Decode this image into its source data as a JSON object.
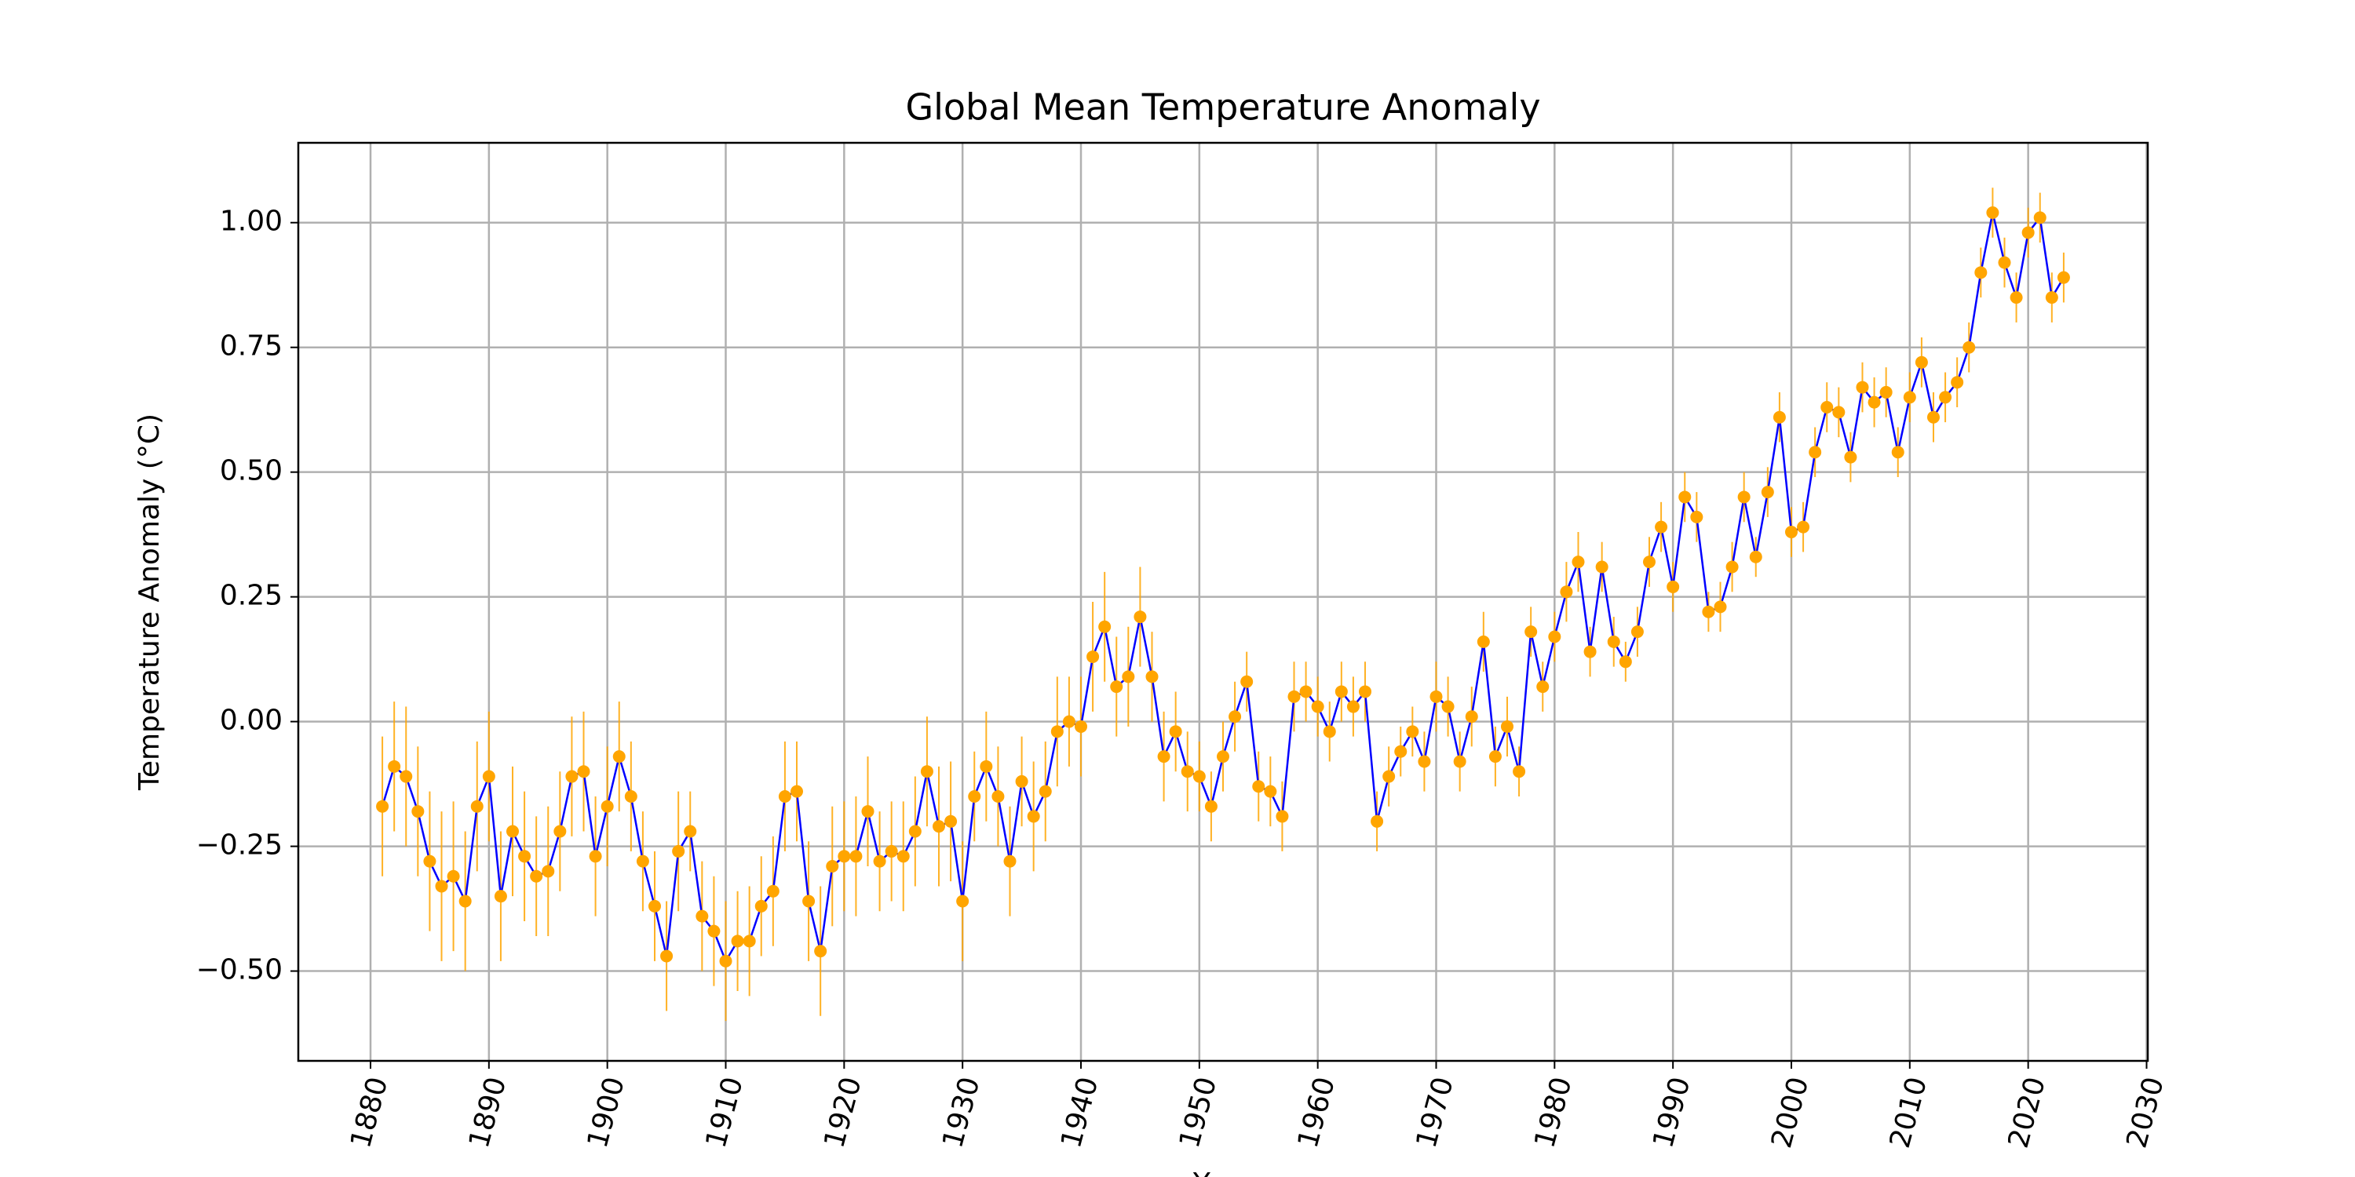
{
  "chart_data": {
    "type": "errorbar",
    "title": "Global Mean Temperature Anomaly",
    "xlabel": "Year",
    "ylabel": "Temperature Anomaly (°C)",
    "x": [
      1881,
      1882,
      1883,
      1884,
      1885,
      1886,
      1887,
      1888,
      1889,
      1890,
      1891,
      1892,
      1893,
      1894,
      1895,
      1896,
      1897,
      1898,
      1899,
      1900,
      1901,
      1902,
      1903,
      1904,
      1905,
      1906,
      1907,
      1908,
      1909,
      1910,
      1911,
      1912,
      1913,
      1914,
      1915,
      1916,
      1917,
      1918,
      1919,
      1920,
      1921,
      1922,
      1923,
      1924,
      1925,
      1926,
      1927,
      1928,
      1929,
      1930,
      1931,
      1932,
      1933,
      1934,
      1935,
      1936,
      1937,
      1938,
      1939,
      1940,
      1941,
      1942,
      1943,
      1944,
      1945,
      1946,
      1947,
      1948,
      1949,
      1950,
      1951,
      1952,
      1953,
      1954,
      1955,
      1956,
      1957,
      1958,
      1959,
      1960,
      1961,
      1962,
      1963,
      1964,
      1965,
      1966,
      1967,
      1968,
      1969,
      1970,
      1971,
      1972,
      1973,
      1974,
      1975,
      1976,
      1977,
      1978,
      1979,
      1980,
      1981,
      1982,
      1983,
      1984,
      1985,
      1986,
      1987,
      1988,
      1989,
      1990,
      1991,
      1992,
      1993,
      1994,
      1995,
      1996,
      1997,
      1998,
      1999,
      2000,
      2001,
      2002,
      2003,
      2004,
      2005,
      2006,
      2007,
      2008,
      2009,
      2010,
      2011,
      2012,
      2013,
      2014,
      2015,
      2016,
      2017,
      2018,
      2019,
      2020,
      2021,
      2022,
      2023
    ],
    "values": [
      -0.17,
      -0.09,
      -0.11,
      -0.18,
      -0.28,
      -0.33,
      -0.31,
      -0.36,
      -0.17,
      -0.11,
      -0.35,
      -0.22,
      -0.27,
      -0.31,
      -0.3,
      -0.22,
      -0.11,
      -0.1,
      -0.27,
      -0.17,
      -0.07,
      -0.15,
      -0.28,
      -0.37,
      -0.47,
      -0.26,
      -0.22,
      -0.39,
      -0.42,
      -0.48,
      -0.44,
      -0.44,
      -0.37,
      -0.34,
      -0.15,
      -0.14,
      -0.36,
      -0.46,
      -0.29,
      -0.27,
      -0.27,
      -0.18,
      -0.28,
      -0.26,
      -0.27,
      -0.22,
      -0.1,
      -0.21,
      -0.2,
      -0.36,
      -0.15,
      -0.09,
      -0.15,
      -0.28,
      -0.12,
      -0.19,
      -0.14,
      -0.02,
      0.0,
      -0.01,
      0.13,
      0.19,
      0.07,
      0.09,
      0.21,
      0.09,
      -0.07,
      -0.02,
      -0.1,
      -0.11,
      -0.17,
      -0.07,
      0.01,
      0.08,
      -0.13,
      -0.14,
      -0.19,
      0.05,
      0.06,
      0.03,
      -0.02,
      0.06,
      0.03,
      0.06,
      -0.2,
      -0.11,
      -0.06,
      -0.02,
      -0.08,
      0.05,
      0.03,
      -0.08,
      0.01,
      0.16,
      -0.07,
      -0.01,
      -0.1,
      0.18,
      0.07,
      0.17,
      0.26,
      0.32,
      0.14,
      0.31,
      0.16,
      0.12,
      0.18,
      0.32,
      0.39,
      0.27,
      0.45,
      0.41,
      0.22,
      0.23,
      0.31,
      0.45,
      0.33,
      0.46,
      0.61,
      0.38,
      0.39,
      0.54,
      0.63,
      0.62,
      0.53,
      0.67,
      0.64,
      0.66,
      0.54,
      0.65,
      0.72,
      0.61,
      0.65,
      0.68,
      0.75,
      0.9,
      1.02,
      0.92,
      0.85,
      0.98,
      1.01,
      0.85,
      0.89
    ],
    "errors": [
      0.14,
      0.13,
      0.14,
      0.13,
      0.14,
      0.15,
      0.15,
      0.14,
      0.13,
      0.13,
      0.13,
      0.13,
      0.13,
      0.12,
      0.13,
      0.12,
      0.12,
      0.12,
      0.12,
      0.12,
      0.11,
      0.11,
      0.1,
      0.11,
      0.11,
      0.12,
      0.08,
      0.11,
      0.11,
      0.12,
      0.1,
      0.11,
      0.1,
      0.11,
      0.11,
      0.1,
      0.12,
      0.13,
      0.12,
      0.11,
      0.12,
      0.11,
      0.1,
      0.1,
      0.11,
      0.11,
      0.11,
      0.12,
      0.12,
      0.12,
      0.09,
      0.11,
      0.1,
      0.11,
      0.09,
      0.11,
      0.1,
      0.11,
      0.09,
      0.1,
      0.11,
      0.11,
      0.1,
      0.1,
      0.1,
      0.09,
      0.09,
      0.08,
      0.08,
      0.07,
      0.07,
      0.07,
      0.07,
      0.06,
      0.07,
      0.07,
      0.07,
      0.07,
      0.06,
      0.06,
      0.06,
      0.06,
      0.06,
      0.06,
      0.06,
      0.06,
      0.05,
      0.05,
      0.06,
      0.07,
      0.06,
      0.06,
      0.06,
      0.06,
      0.06,
      0.06,
      0.05,
      0.05,
      0.05,
      0.05,
      0.06,
      0.06,
      0.05,
      0.05,
      0.05,
      0.04,
      0.05,
      0.05,
      0.05,
      0.05,
      0.05,
      0.05,
      0.04,
      0.05,
      0.05,
      0.05,
      0.04,
      0.05,
      0.05,
      0.05,
      0.05,
      0.05,
      0.05,
      0.05,
      0.05,
      0.05,
      0.05,
      0.05,
      0.05,
      0.05,
      0.05,
      0.05,
      0.05,
      0.05,
      0.05,
      0.05,
      0.05,
      0.05,
      0.05,
      0.05,
      0.05,
      0.05,
      0.05
    ],
    "line_color": "#0000ff",
    "marker_color": "#ffa500",
    "xlim": [
      1873.9,
      2030.1
    ],
    "ylim": [
      -0.68,
      1.16
    ],
    "xticks": [
      1880,
      1890,
      1900,
      1910,
      1920,
      1930,
      1940,
      1950,
      1960,
      1970,
      1980,
      1990,
      2000,
      2010,
      2020,
      2030
    ],
    "yticks": [
      {
        "value": -0.5,
        "label": "−0.50"
      },
      {
        "value": -0.25,
        "label": "−0.25"
      },
      {
        "value": 0,
        "label": "0.00"
      },
      {
        "value": 0.25,
        "label": "0.25"
      },
      {
        "value": 0.5,
        "label": "0.50"
      },
      {
        "value": 0.75,
        "label": "0.75"
      },
      {
        "value": 1,
        "label": "1.00"
      }
    ],
    "grid": true
  }
}
